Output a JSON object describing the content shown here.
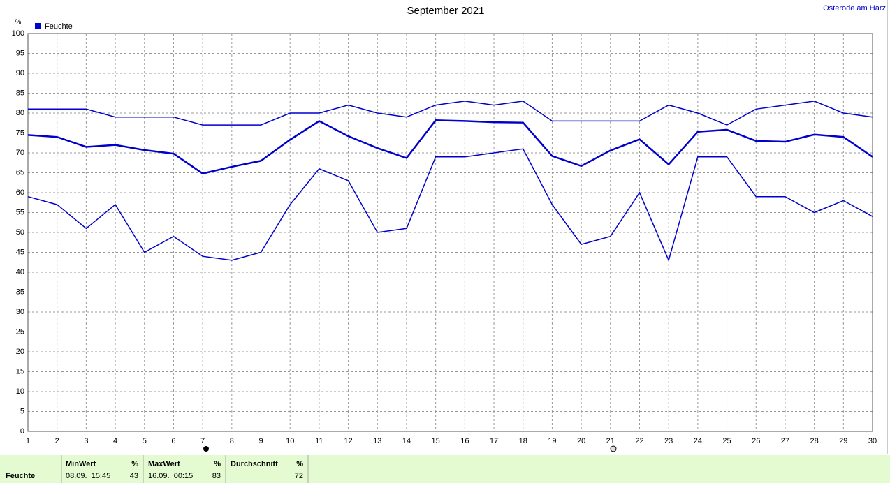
{
  "chart_data": {
    "type": "line",
    "title": "September 2021",
    "corner_label": "Osterode am Harz",
    "y_unit": "%",
    "x": [
      1,
      2,
      3,
      4,
      5,
      6,
      7,
      8,
      9,
      10,
      11,
      12,
      13,
      14,
      15,
      16,
      17,
      18,
      19,
      20,
      21,
      22,
      23,
      24,
      25,
      26,
      27,
      28,
      29,
      30
    ],
    "series": [
      {
        "name": "Feuchte",
        "color": "#0000cc",
        "line_width": 2.5,
        "values": [
          74.5,
          74,
          71.5,
          72,
          70.7,
          69.8,
          64.8,
          66.5,
          68,
          73.3,
          78,
          74.2,
          71.2,
          68.7,
          78.2,
          78,
          77.7,
          77.6,
          69.2,
          66.7,
          70.6,
          73.4,
          67.1,
          75.3,
          75.8,
          73,
          72.8,
          74.6,
          74,
          69
        ]
      },
      {
        "color": "#0000cc",
        "line_width": 1.5,
        "values": [
          81,
          81,
          81,
          79,
          79,
          79,
          77,
          77,
          77,
          80,
          80,
          82,
          80,
          79,
          82,
          83,
          82,
          83,
          78,
          78,
          78,
          78,
          82,
          80,
          77,
          81,
          82,
          83,
          80,
          79
        ]
      },
      {
        "color": "#0000cc",
        "line_width": 1.5,
        "values": [
          59,
          57,
          51,
          57,
          45,
          49,
          44,
          43,
          45,
          57,
          66,
          63,
          50,
          51,
          69,
          69,
          70,
          71,
          57,
          47,
          49,
          60,
          43,
          69,
          69,
          59,
          59,
          55,
          58,
          54
        ]
      }
    ],
    "xlim": [
      1,
      30
    ],
    "xticks": [
      1,
      2,
      3,
      4,
      5,
      6,
      7,
      8,
      9,
      10,
      11,
      12,
      13,
      14,
      15,
      16,
      17,
      18,
      19,
      20,
      21,
      22,
      23,
      24,
      25,
      26,
      27,
      28,
      29,
      30
    ],
    "ylim": [
      0,
      100
    ],
    "yticks": [
      0,
      5,
      10,
      15,
      20,
      25,
      30,
      35,
      40,
      45,
      50,
      55,
      60,
      65,
      70,
      75,
      80,
      85,
      90,
      95,
      100
    ],
    "grid": true
  },
  "summary": {
    "row_label": "Feuchte",
    "columns": [
      {
        "title": "MinWert",
        "unit": "%",
        "time": "08.09.  15:45",
        "value": 43
      },
      {
        "title": "MaxWert",
        "unit": "%",
        "time": "16.09.  00:15",
        "value": 83
      },
      {
        "title": "Durchschnitt",
        "unit": "%",
        "value": 72
      }
    ]
  }
}
